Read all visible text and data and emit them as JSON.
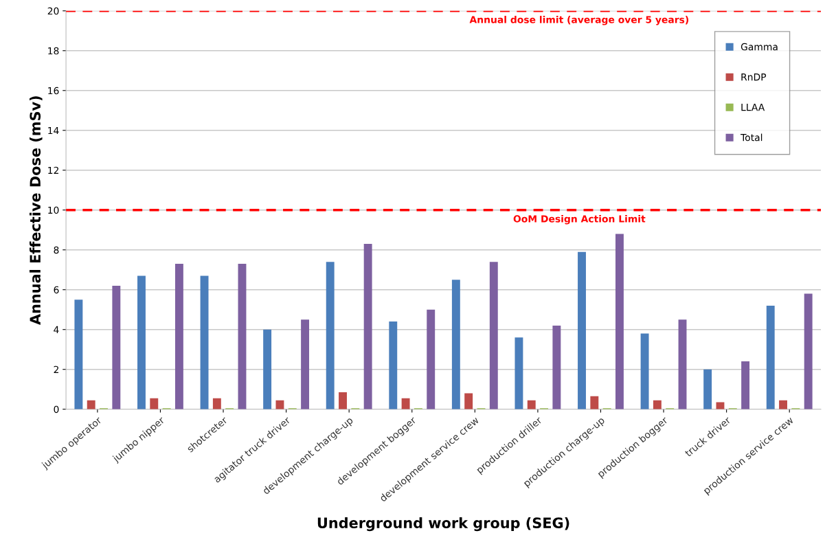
{
  "chart_data": {
    "type": "bar",
    "xlabel": "Underground work group (SEG)",
    "ylabel": "Annual Effective Dose (mSv)",
    "categories": [
      "jumbo operator",
      "jumbo nipper",
      "shotcreter",
      "agitator truck driver",
      "development charge-up",
      "development bogger",
      "development service crew",
      "production driller",
      "production charge-up",
      "production bogger",
      "truck driver",
      "production service crew"
    ],
    "series": [
      {
        "name": "Gamma",
        "color": "#4a7ebb",
        "values": [
          5.5,
          6.7,
          6.7,
          4.0,
          7.4,
          4.4,
          6.5,
          3.6,
          7.9,
          3.8,
          2.0,
          5.2
        ]
      },
      {
        "name": "RnDP",
        "color": "#be4b48",
        "values": [
          0.45,
          0.55,
          0.55,
          0.45,
          0.85,
          0.55,
          0.8,
          0.45,
          0.65,
          0.45,
          0.35,
          0.45
        ]
      },
      {
        "name": "LLAA",
        "color": "#98b954",
        "values": [
          0.05,
          0.05,
          0.05,
          0.05,
          0.05,
          0.05,
          0.05,
          0.05,
          0.05,
          0.05,
          0.05,
          0.05
        ]
      },
      {
        "name": "Total",
        "color": "#7d60a0",
        "values": [
          6.2,
          7.3,
          7.3,
          4.5,
          8.3,
          5.0,
          7.4,
          4.2,
          8.8,
          4.5,
          2.4,
          5.8
        ]
      }
    ],
    "ylim": [
      0,
      20
    ],
    "yticks": [
      0,
      2,
      4,
      6,
      8,
      10,
      12,
      14,
      16,
      18,
      20
    ],
    "ref_lines": [
      {
        "axis": "y",
        "value": 20,
        "label": "Annual dose limit (average over 5 years)",
        "color": "#ff0000",
        "line_style": "dashed"
      },
      {
        "axis": "y",
        "value": 10,
        "label": "OoM Design Action Limit",
        "color": "#ff0000",
        "line_style": "dashed"
      }
    ],
    "grid": "y",
    "legend": "top right"
  }
}
